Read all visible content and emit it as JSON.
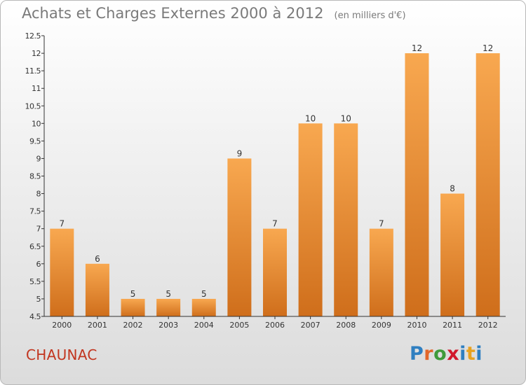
{
  "header": {
    "title": "Achats et Charges Externes 2000 à 2012",
    "unit": "(en milliers d'€)"
  },
  "footer": {
    "commune": "CHAUNAC",
    "brand": "Proxiti",
    "brand_letter_colors": [
      "#2f7fc1",
      "#e2672a",
      "#3f9b3a",
      "#d1182b",
      "#2f7fc1",
      "#e8a21f",
      "#2f7fc1"
    ]
  },
  "colors": {
    "bar_light": "#f8a850",
    "bar_dark": "#cf6e1b",
    "axis": "#333333",
    "text": "#333333"
  },
  "chart_data": {
    "type": "bar",
    "title": "Achats et Charges Externes 2000 à 2012",
    "categories": [
      "2000",
      "2001",
      "2002",
      "2003",
      "2004",
      "2005",
      "2006",
      "2007",
      "2008",
      "2009",
      "2010",
      "2011",
      "2012"
    ],
    "values": [
      7,
      6,
      5,
      5,
      5,
      9,
      7,
      10,
      10,
      7,
      12,
      8,
      12
    ],
    "xlabel": "",
    "ylabel": "",
    "ylim": [
      4.5,
      12.5
    ],
    "yticks": [
      4.5,
      5,
      5.5,
      6,
      6.5,
      7,
      7.5,
      8,
      8.5,
      9,
      9.5,
      10,
      10.5,
      11,
      11.5,
      12,
      12.5
    ],
    "ytick_labels": [
      "4.5",
      "5",
      "5.5",
      "6",
      "6.5",
      "7",
      "7.5",
      "8",
      "8.5",
      "9",
      "9.5",
      "10",
      "10.5",
      "11",
      "11.5",
      "12",
      "12.5"
    ],
    "data_labels": [
      "7",
      "6",
      "5",
      "5",
      "5",
      "9",
      "7",
      "10",
      "10",
      "7",
      "12",
      "8",
      "12"
    ],
    "grid": false
  }
}
